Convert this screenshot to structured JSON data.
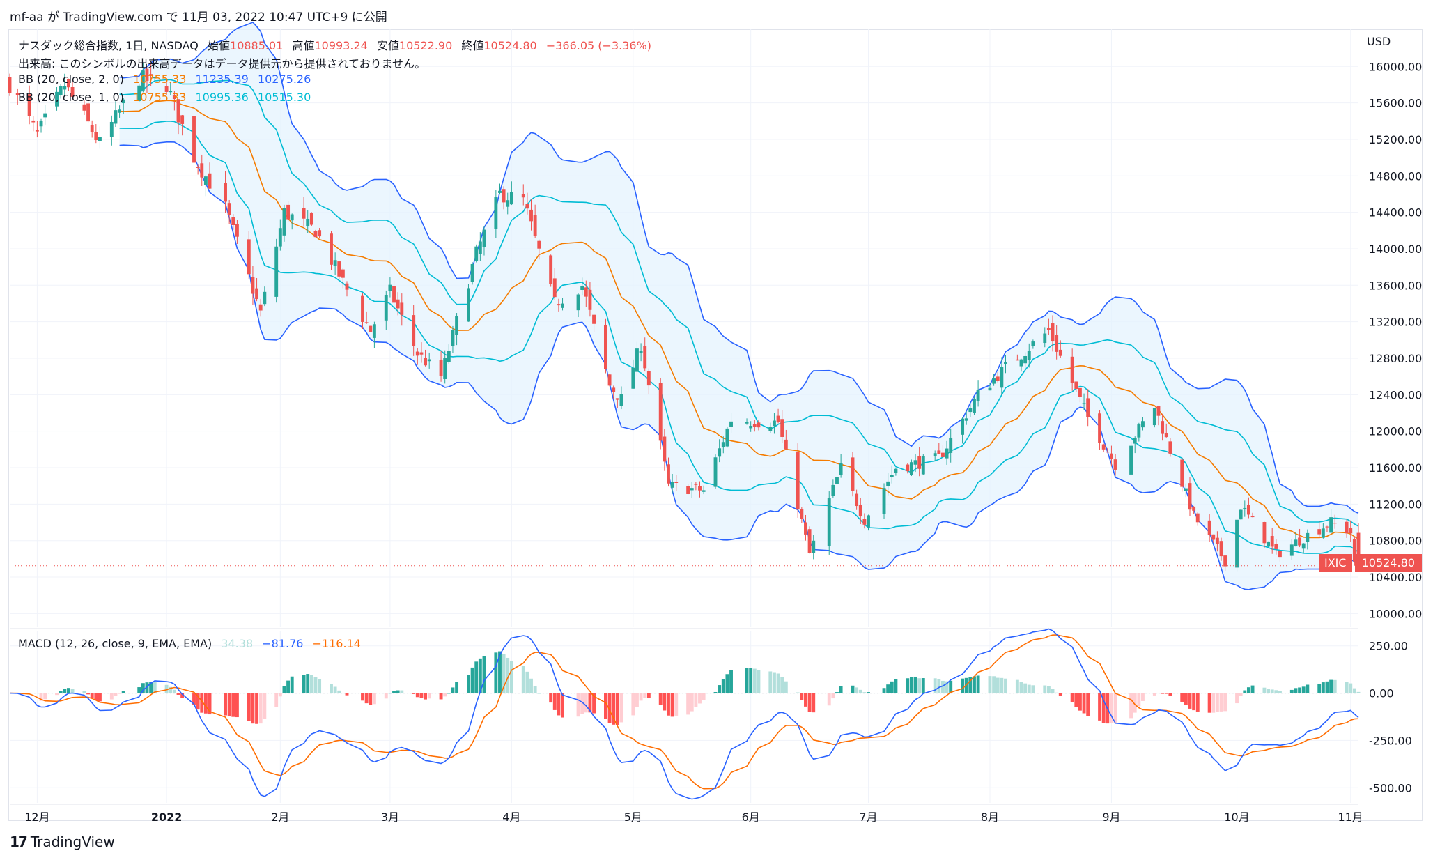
{
  "header": {
    "publish_line": "mf-aa が TradingView.com で 11月 03, 2022 10:47 UTC+9 に公開"
  },
  "price_legend": {
    "symbol_line_label": "ナスダック総合指数, 1日, NASDAQ",
    "open_label": "始値",
    "open": "10885.01",
    "high_label": "高値",
    "high": "10993.24",
    "low_label": "安値",
    "low": "10522.90",
    "close_label": "終値",
    "close": "10524.80",
    "change": "−366.05 (−3.36%)",
    "volume_note": "出来高: このシンボルの出来高データはデータ提供元から提供されておりません。",
    "bb1_label": "BB (20, close, 2, 0)",
    "bb1_basis": "10755.33",
    "bb1_upper": "11235.39",
    "bb1_lower": "10275.26",
    "bb2_label": "BB (20, close, 1, 0)",
    "bb2_basis": "10755.33",
    "bb2_upper": "10995.36",
    "bb2_lower": "10515.30"
  },
  "macd_legend": {
    "label": "MACD (12, 26, close, 9, EMA, EMA)",
    "hist": "34.38",
    "macd": "−81.76",
    "signal": "−116.14"
  },
  "currency": "USD",
  "last_price_tag": {
    "symbol": "IXIC",
    "price": "10524.80"
  },
  "brand": "TradingView",
  "colors": {
    "up": "#26a69a",
    "down": "#ef5350",
    "basis": "#f57c00",
    "bb_outer": "#2962ff",
    "bb_inner": "#00bcd4",
    "band_fill": "#e3f2fd",
    "macd_line": "#2962ff",
    "signal_line": "#ff6d00",
    "hist_up_strong": "#26a69a",
    "hist_up_weak": "#b2dfdb",
    "hist_down_strong": "#ff5252",
    "hist_down_weak": "#ffcdd2"
  },
  "chart_data": [
    {
      "type": "candlestick",
      "title": "ナスダック総合指数, 1日, NASDAQ",
      "ylim": [
        9850,
        16300
      ],
      "y_ticks": [
        10000,
        10400,
        10800,
        11200,
        11600,
        12000,
        12400,
        12800,
        13200,
        13600,
        14000,
        14400,
        14800,
        15200,
        15600,
        16000
      ],
      "x_tick_labels": [
        "12月",
        "2022",
        "2月",
        "3月",
        "4月",
        "5月",
        "6月",
        "7月",
        "8月",
        "9月",
        "10月",
        "11月"
      ],
      "x_tick_dates": [
        "2021-12-01",
        "2022-01-03",
        "2022-02-01",
        "2022-03-01",
        "2022-04-01",
        "2022-05-02",
        "2022-06-01",
        "2022-07-01",
        "2022-08-01",
        "2022-09-01",
        "2022-10-03",
        "2022-11-01"
      ],
      "x_range": [
        "2021-11-24",
        "2022-11-03"
      ],
      "close_anchors": [
        [
          "2021-11-24",
          15800
        ],
        [
          "2021-12-01",
          15250
        ],
        [
          "2021-12-08",
          15800
        ],
        [
          "2021-12-17",
          15150
        ],
        [
          "2021-12-27",
          15870
        ],
        [
          "2022-01-03",
          15800
        ],
        [
          "2022-01-10",
          15000
        ],
        [
          "2022-01-18",
          14450
        ],
        [
          "2022-01-27",
          13300
        ],
        [
          "2022-02-02",
          14400
        ],
        [
          "2022-02-10",
          14200
        ],
        [
          "2022-02-18",
          13550
        ],
        [
          "2022-02-24",
          13100
        ],
        [
          "2022-03-01",
          13530
        ],
        [
          "2022-03-08",
          12850
        ],
        [
          "2022-03-14",
          12600
        ],
        [
          "2022-03-23",
          13950
        ],
        [
          "2022-03-29",
          14600
        ],
        [
          "2022-04-04",
          14530
        ],
        [
          "2022-04-12",
          13400
        ],
        [
          "2022-04-19",
          13600
        ],
        [
          "2022-04-26",
          12500
        ],
        [
          "2022-04-29",
          12350
        ],
        [
          "2022-05-04",
          12950
        ],
        [
          "2022-05-11",
          11400
        ],
        [
          "2022-05-20",
          11350
        ],
        [
          "2022-05-27",
          12130
        ],
        [
          "2022-06-03",
          12100
        ],
        [
          "2022-06-08",
          12100
        ],
        [
          "2022-06-16",
          10650
        ],
        [
          "2022-06-24",
          11600
        ],
        [
          "2022-06-30",
          11030
        ],
        [
          "2022-07-08",
          11600
        ],
        [
          "2022-07-19",
          11700
        ],
        [
          "2022-07-29",
          12400
        ],
        [
          "2022-08-05",
          12700
        ],
        [
          "2022-08-16",
          13100
        ],
        [
          "2022-08-26",
          12150
        ],
        [
          "2022-09-02",
          11640
        ],
        [
          "2022-09-12",
          12270
        ],
        [
          "2022-09-22",
          11070
        ],
        [
          "2022-09-30",
          10580
        ],
        [
          "2022-10-04",
          11180
        ],
        [
          "2022-10-13",
          10650
        ],
        [
          "2022-10-21",
          10860
        ],
        [
          "2022-10-27",
          11000
        ],
        [
          "2022-11-01",
          10890
        ],
        [
          "2022-11-02",
          10524.8
        ]
      ],
      "last": {
        "date": "2022-11-02",
        "open": 10885.01,
        "high": 10993.24,
        "low": 10522.9,
        "close": 10524.8
      },
      "bollinger": [
        {
          "name": "BB (20, close, 2, 0)",
          "period": 20,
          "mult": 2,
          "basis": 10755.33,
          "upper": 11235.39,
          "lower": 10275.26
        },
        {
          "name": "BB (20, close, 1, 0)",
          "period": 20,
          "mult": 1,
          "basis": 10755.33,
          "upper": 10995.36,
          "lower": 10515.3
        }
      ]
    },
    {
      "type": "bar+line",
      "title": "MACD (12, 26, close, 9, EMA, EMA)",
      "ylim": [
        -580,
        330
      ],
      "y_ticks": [
        250,
        0,
        -250,
        -500
      ],
      "series": [
        {
          "name": "Histogram",
          "last": 34.38
        },
        {
          "name": "MACD",
          "last": -81.76
        },
        {
          "name": "Signal",
          "last": -116.14
        }
      ]
    }
  ]
}
